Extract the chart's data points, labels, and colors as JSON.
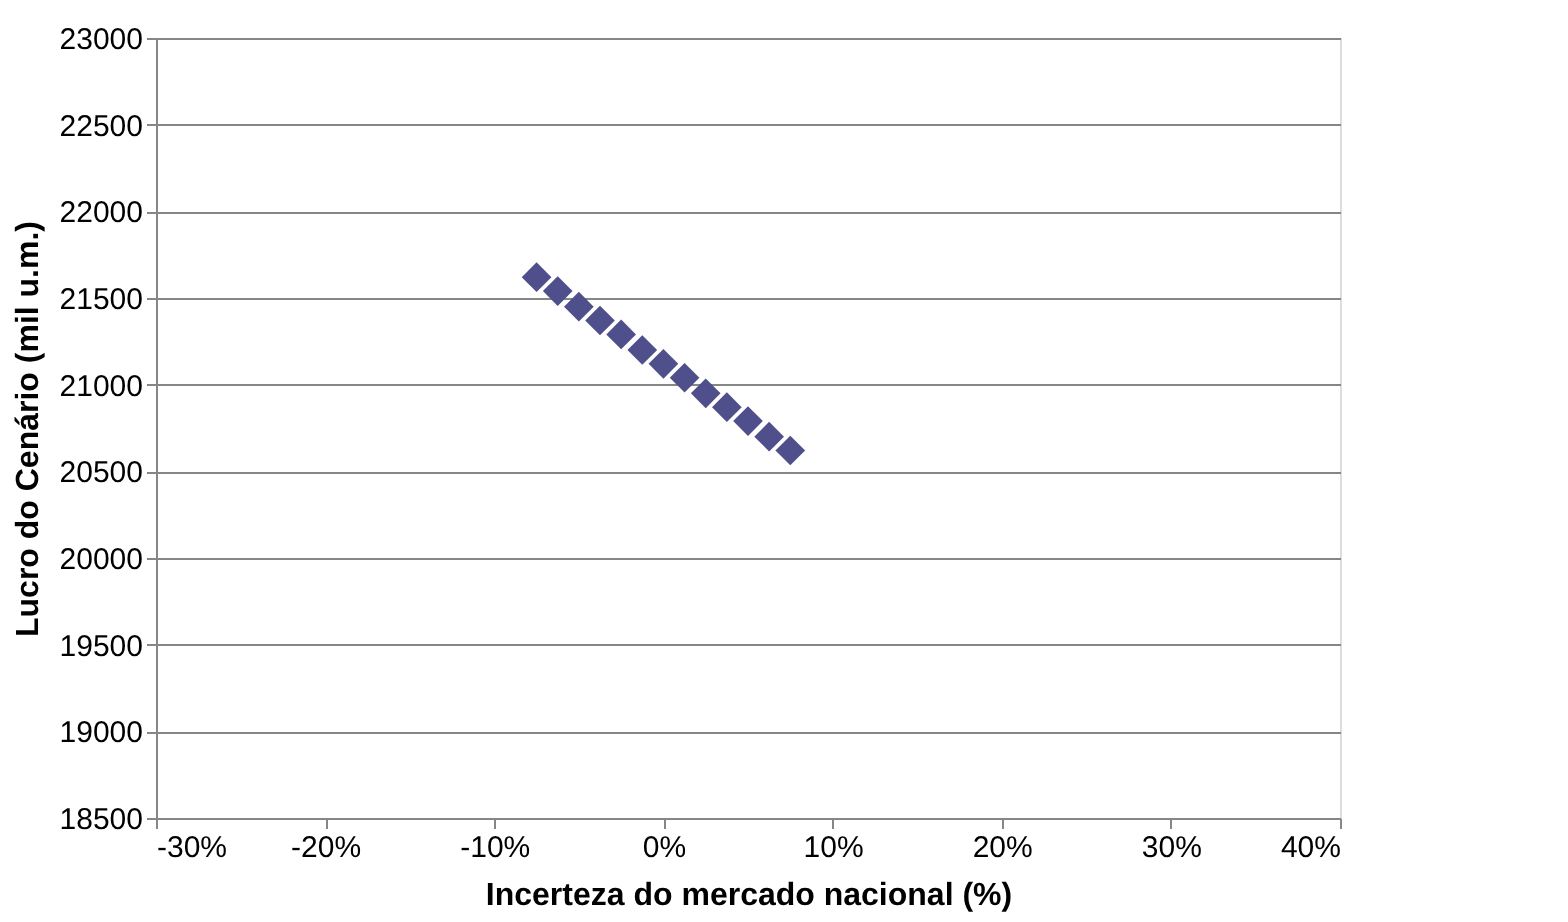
{
  "chart_data": {
    "type": "scatter",
    "xlabel": "Incerteza do mercado nacional (%)",
    "ylabel": "Lucro do Cenário (mil u.m.)",
    "x": [
      -0.075,
      -0.0625,
      -0.05,
      -0.0375,
      -0.025,
      -0.0125,
      0,
      0.0125,
      0.025,
      0.0375,
      0.05,
      0.0625,
      0.075
    ],
    "series": [
      {
        "color": "#4f4f8c",
        "values": [
          21620,
          21540,
          21450,
          21370,
          21290,
          21200,
          21120,
          21040,
          20950,
          20870,
          20790,
          20700,
          20620
        ]
      }
    ],
    "xlim": [
      -0.3,
      0.4
    ],
    "xticks": [
      {
        "value": -0.3,
        "label": "-30%"
      },
      {
        "value": -0.2,
        "label": "-20%"
      },
      {
        "value": -0.1,
        "label": "-10%"
      },
      {
        "value": 0,
        "label": "0%"
      },
      {
        "value": 0.1,
        "label": "10%"
      },
      {
        "value": 0.2,
        "label": "20%"
      },
      {
        "value": 0.3,
        "label": "30%"
      },
      {
        "value": 0.4,
        "label": "40%"
      }
    ],
    "ylim": [
      18500,
      23000
    ],
    "yticks": [
      18500,
      19000,
      19500,
      20000,
      20500,
      21000,
      21500,
      22000,
      22500,
      23000
    ],
    "grid": "y",
    "legend": false,
    "marker": "diamond"
  }
}
